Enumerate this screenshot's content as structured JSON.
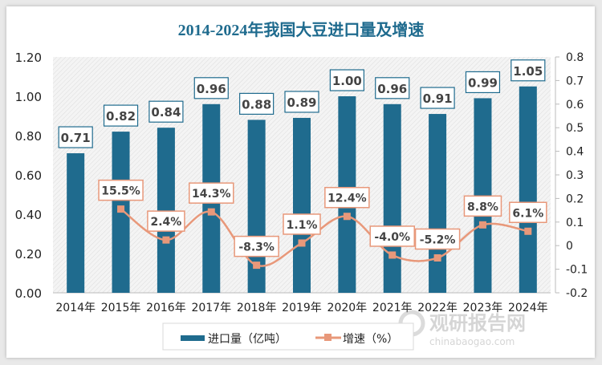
{
  "chart_data": {
    "type": "bar+line",
    "title": "2014-2024年我国大豆进口量及增速",
    "categories": [
      "2014年",
      "2015年",
      "2016年",
      "2017年",
      "2018年",
      "2019年",
      "2020年",
      "2021年",
      "2022年",
      "2023年",
      "2024年"
    ],
    "series": [
      {
        "name": "进口量（亿吨）",
        "type": "bar",
        "axis": "left",
        "color": "#1f6b8e",
        "values": [
          0.71,
          0.82,
          0.84,
          0.96,
          0.88,
          0.89,
          1.0,
          0.96,
          0.91,
          0.99,
          1.05
        ],
        "labels": [
          "0.71",
          "0.82",
          "0.84",
          "0.96",
          "0.88",
          "0.89",
          "1.00",
          "0.96",
          "0.91",
          "0.99",
          "1.05"
        ]
      },
      {
        "name": "增速（%）",
        "type": "line",
        "axis": "right",
        "color": "#e8987a",
        "smooth": true,
        "values": [
          null,
          0.155,
          0.024,
          0.143,
          -0.083,
          0.011,
          0.124,
          -0.04,
          -0.052,
          0.088,
          0.061
        ],
        "labels": [
          "",
          "15.5%",
          "2.4%",
          "14.3%",
          "-8.3%",
          "1.1%",
          "12.4%",
          "-4.0%",
          "-5.2%",
          "8.8%",
          "6.1%"
        ]
      }
    ],
    "left_axis": {
      "range": [
        0,
        1.2
      ],
      "ticks": [
        "0.00",
        "0.20",
        "0.40",
        "0.60",
        "0.80",
        "1.00",
        "1.20"
      ]
    },
    "right_axis": {
      "range": [
        -0.2,
        0.8
      ],
      "ticks": [
        "-0.2",
        "-0.1",
        "0",
        "0.1",
        "0.2",
        "0.3",
        "0.4",
        "0.5",
        "0.6",
        "0.7",
        "0.8"
      ]
    },
    "grid": false,
    "legend_position": "bottom-left"
  },
  "watermark": {
    "logo": "观研报告网",
    "url": "chinabaogao.com"
  }
}
